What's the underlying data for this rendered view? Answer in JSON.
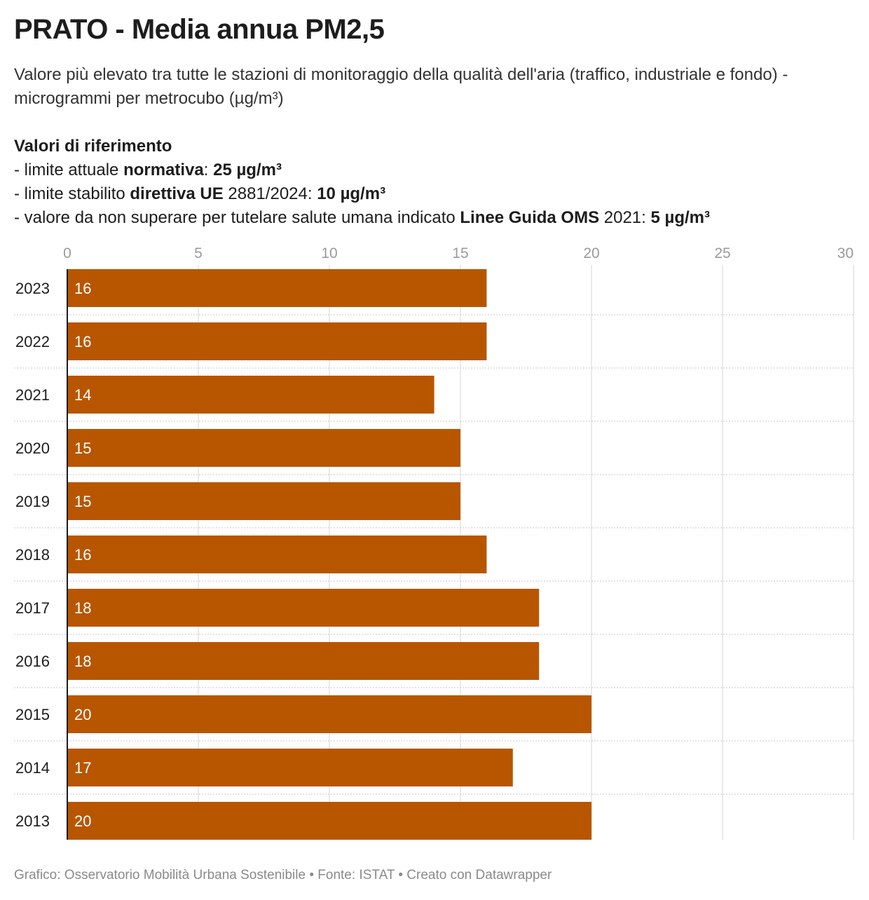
{
  "header": {
    "title": "PRATO - Media annua PM2,5",
    "subtitle": "Valore più elevato tra tutte le stazioni di monitoraggio della qualità dell'aria (traffico, industriale e fondo) - microgrammi per metrocubo (µg/m³)"
  },
  "references": {
    "heading": "Valori di riferimento",
    "line1_a": "- limite attuale ",
    "line1_b": "normativa",
    "line1_c": ": ",
    "line1_d": "25 µg/m³",
    "line2_a": "- limite stabilito ",
    "line2_b": "direttiva UE",
    "line2_c": " 2881/2024: ",
    "line2_d": "10 µg/m³",
    "line3_a": "- valore da non superare per tutelare salute umana indicato ",
    "line3_b": "Linee Guida OMS",
    "line3_c": " 2021: ",
    "line3_d": "5 µg/m³"
  },
  "chart_data": {
    "type": "bar",
    "orientation": "horizontal",
    "categories": [
      "2023",
      "2022",
      "2021",
      "2020",
      "2019",
      "2018",
      "2017",
      "2016",
      "2015",
      "2014",
      "2013"
    ],
    "values": [
      16,
      16,
      14,
      15,
      15,
      16,
      18,
      18,
      20,
      17,
      20
    ],
    "xlim": [
      0,
      30
    ],
    "xticks": [
      "0",
      "5",
      "10",
      "15",
      "20",
      "25",
      "30"
    ],
    "bar_color": "#b85600",
    "grid": true,
    "axis_position": "top"
  },
  "footer": {
    "credits": "Grafico: Osservatorio Mobilità Urbana Sostenibile • Fonte: ISTAT • Creato con Datawrapper"
  }
}
